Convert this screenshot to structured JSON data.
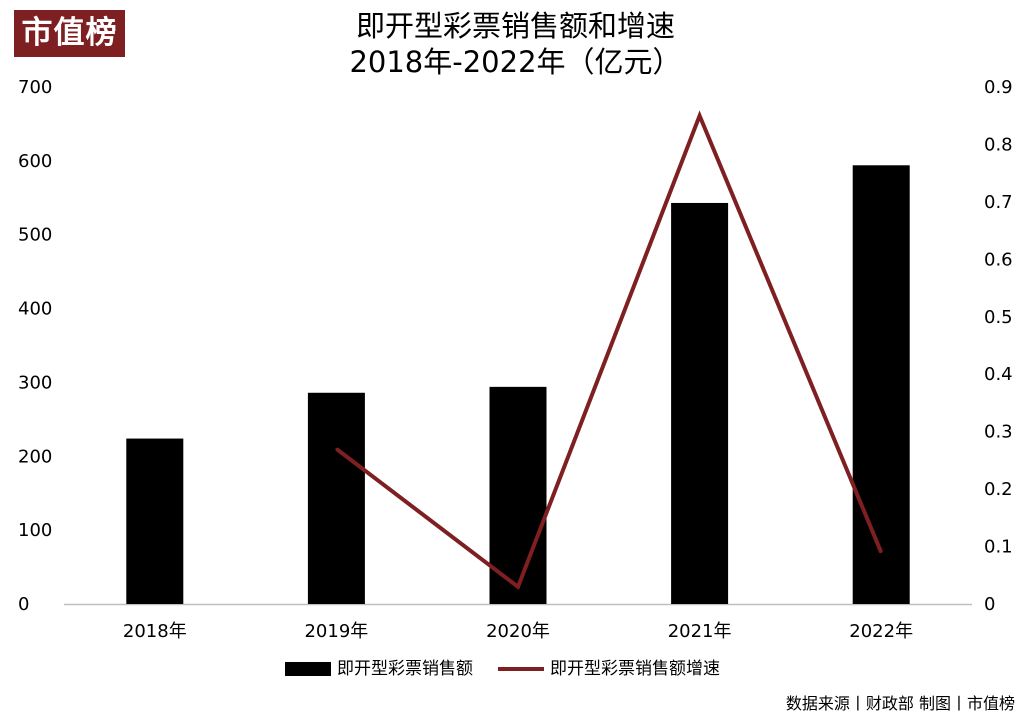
{
  "logo": {
    "text": "市值榜"
  },
  "title_line1": "即开型彩票销售额和增速",
  "title_line2": "2018年-2022年（亿元）",
  "colors": {
    "bar": "#000000",
    "line": "#7e1f22",
    "logo_bg": "#7e1f22",
    "axis": "#bfbfbf"
  },
  "chart_data": {
    "type": "bar",
    "categories": [
      "2018年",
      "2019年",
      "2020年",
      "2021年",
      "2022年"
    ],
    "series": [
      {
        "name": "即开型彩票销售额",
        "type": "bar",
        "axis": "left",
        "values": [
          224,
          286,
          294,
          543,
          594
        ]
      },
      {
        "name": "即开型彩票销售额增速",
        "type": "line",
        "axis": "right",
        "values": [
          null,
          0.27,
          0.03,
          0.85,
          0.09
        ]
      }
    ],
    "y_left": {
      "range": [
        0,
        700
      ],
      "ticks": [
        "0",
        "100",
        "200",
        "300",
        "400",
        "500",
        "600",
        "700"
      ]
    },
    "y_right": {
      "range": [
        0,
        0.9
      ],
      "ticks": [
        "0",
        "0.1",
        "0.2",
        "0.3",
        "0.4",
        "0.5",
        "0.6",
        "0.7",
        "0.8",
        "0.9"
      ]
    },
    "grid": false,
    "legend": "bottom"
  },
  "source": "数据来源丨财政部  制图丨市值榜"
}
